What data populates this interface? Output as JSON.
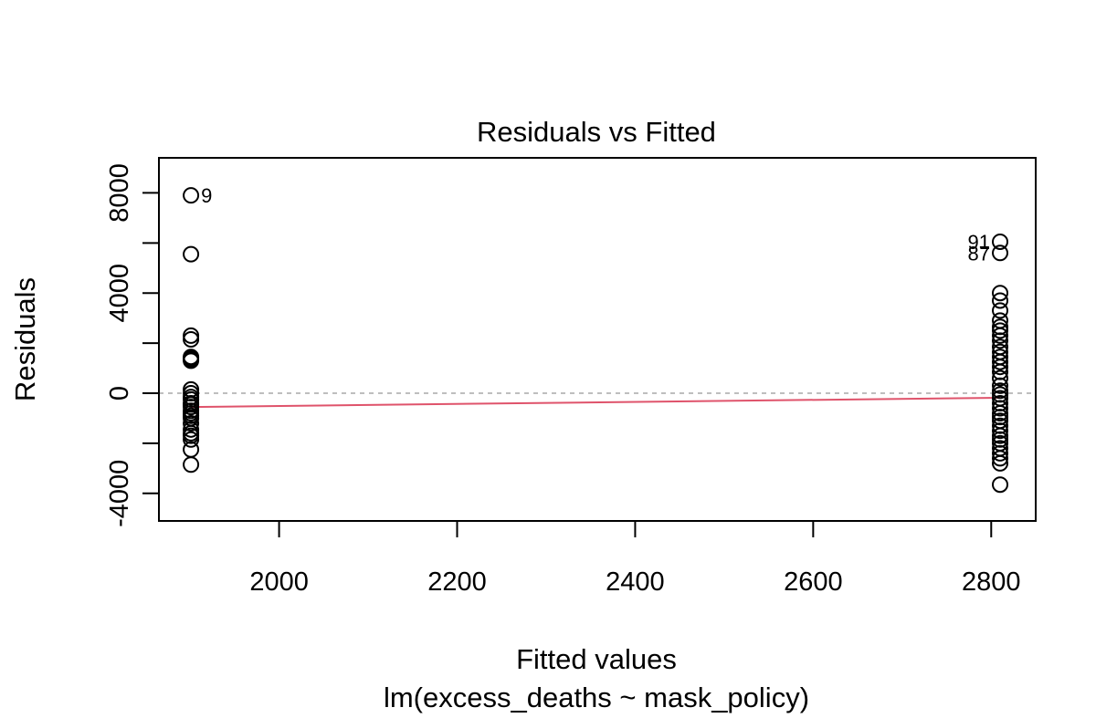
{
  "chart_data": {
    "type": "scatter",
    "title": "Residuals vs Fitted",
    "xlabel": "Fitted values",
    "subtitle": "lm(excess_deaths ~ mask_policy)",
    "ylabel": "Residuals",
    "xlim": [
      1865,
      2850
    ],
    "ylim": [
      -5100,
      9400
    ],
    "x_ticks": [
      2000,
      2200,
      2400,
      2600,
      2800
    ],
    "y_ticks": [
      -4000,
      0,
      4000,
      8000
    ],
    "y_minor_ticks": [
      -2000,
      2000,
      6000
    ],
    "y_tick_labels": [
      "-4000",
      "0",
      "4000",
      "8000"
    ],
    "x_tick_labels": [
      "2000",
      "2200",
      "2400",
      "2600",
      "2800"
    ],
    "reference_line": 0,
    "groups": [
      {
        "x": 1901,
        "residuals": [
          7900,
          5550,
          2300,
          2150,
          1450,
          1400,
          1350,
          1300,
          150,
          0,
          -150,
          -250,
          -400,
          -450,
          -550,
          -700,
          -800,
          -900,
          -1000,
          -1200,
          -1450,
          -1600,
          -1700,
          -1850,
          -2250,
          -2850
        ]
      },
      {
        "x": 2810,
        "residuals": [
          6050,
          5600,
          4000,
          3700,
          3300,
          2900,
          2650,
          2500,
          2300,
          2100,
          1850,
          1650,
          1450,
          1250,
          1050,
          850,
          600,
          300,
          100,
          -50,
          -200,
          -400,
          -600,
          -800,
          -950,
          -1100,
          -1300,
          -1500,
          -1700,
          -1850,
          -2000,
          -2200,
          -2400,
          -2600,
          -2800,
          -3650
        ]
      }
    ],
    "smooth_line": [
      {
        "x": 1901,
        "y": -550
      },
      {
        "x": 2810,
        "y": -180
      }
    ],
    "labeled_points": [
      {
        "label": "9",
        "x": 1901,
        "y": 7900,
        "side": "right"
      },
      {
        "label": "91",
        "x": 2810,
        "y": 6050,
        "side": "left"
      },
      {
        "label": "87",
        "x": 2810,
        "y": 5600,
        "side": "left"
      }
    ],
    "colors": {
      "points": "#000000",
      "smooth": "#DF536B",
      "reference": "#BEBEBE",
      "frame": "#000000"
    }
  }
}
